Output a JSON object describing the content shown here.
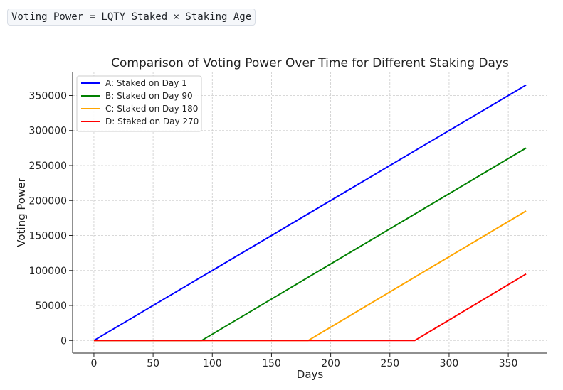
{
  "header": {
    "formula": "Voting Power = LQTY Staked × Staking Age"
  },
  "chart_data": {
    "type": "line",
    "title": "Comparison of Voting Power Over Time for Different Staking Days",
    "xlabel": "Days",
    "ylabel": "Voting Power",
    "xlim": [
      -18,
      383
    ],
    "ylim": [
      -18000,
      384000
    ],
    "xticks": [
      0,
      50,
      100,
      150,
      200,
      250,
      300,
      350
    ],
    "yticks": [
      0,
      50000,
      100000,
      150000,
      200000,
      250000,
      300000,
      350000
    ],
    "grid": true,
    "legend_position": "top-left",
    "series": [
      {
        "name": "A: Staked on Day 1",
        "color": "#0000ff",
        "x": [
          0,
          365
        ],
        "y": [
          0,
          365000
        ]
      },
      {
        "name": "B: Staked on Day 90",
        "color": "#008000",
        "x": [
          0,
          91,
          365
        ],
        "y": [
          0,
          0,
          275000
        ]
      },
      {
        "name": "C: Staked on Day 180",
        "color": "#ffa500",
        "x": [
          0,
          181,
          365
        ],
        "y": [
          0,
          0,
          185000
        ]
      },
      {
        "name": "D: Staked on Day 270",
        "color": "#ff0000",
        "x": [
          0,
          271,
          365
        ],
        "y": [
          0,
          0,
          95000
        ]
      }
    ]
  }
}
